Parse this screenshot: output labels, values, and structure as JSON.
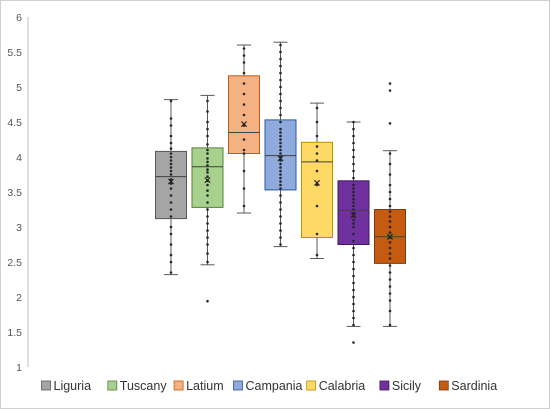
{
  "chart_data": {
    "type": "box",
    "ylim": [
      1,
      6
    ],
    "yticks": [
      "1",
      "1.5",
      "2",
      "2.5",
      "3",
      "3.5",
      "4",
      "4.5",
      "5",
      "5.5",
      "6"
    ],
    "grid": false,
    "legend_position": "bottom",
    "series": [
      {
        "name": "Liguria",
        "color": "#a5a5a5",
        "edge": "#595959",
        "min": 2.32,
        "q1": 3.12,
        "median": 3.72,
        "q3": 4.08,
        "max": 4.82,
        "mean": 3.65,
        "points": [
          2.35,
          2.5,
          2.6,
          2.75,
          2.9,
          3.0,
          3.15,
          3.25,
          3.35,
          3.45,
          3.55,
          3.62,
          3.68,
          3.75,
          3.8,
          3.85,
          3.9,
          3.95,
          4.0,
          4.05,
          4.12,
          4.2,
          4.3,
          4.45,
          4.55,
          4.8
        ]
      },
      {
        "name": "Tuscany",
        "color": "#a9d18e",
        "edge": "#548235",
        "min": 2.46,
        "q1": 3.28,
        "median": 3.86,
        "q3": 4.13,
        "max": 4.88,
        "mean": 3.67,
        "points": [
          1.94,
          2.5,
          2.62,
          2.75,
          2.85,
          2.95,
          3.05,
          3.15,
          3.25,
          3.35,
          3.45,
          3.52,
          3.6,
          3.66,
          3.72,
          3.78,
          3.82,
          3.88,
          3.93,
          3.98,
          4.05,
          4.1,
          4.18,
          4.3,
          4.4,
          4.5,
          4.65,
          4.8
        ]
      },
      {
        "name": "Latium",
        "color": "#f4b183",
        "edge": "#c55a11",
        "min": 3.2,
        "q1": 4.05,
        "median": 4.35,
        "q3": 5.16,
        "max": 5.6,
        "mean": 4.47,
        "points": [
          3.3,
          3.55,
          3.8,
          4.05,
          4.1,
          4.25,
          4.45,
          4.6,
          4.75,
          4.9,
          5.05,
          5.2,
          5.35,
          5.45,
          5.55
        ]
      },
      {
        "name": "Campania",
        "color": "#8faadc",
        "edge": "#2f5597",
        "min": 2.72,
        "q1": 3.53,
        "median": 4.02,
        "q3": 4.53,
        "max": 5.64,
        "mean": 3.98,
        "points": [
          2.75,
          2.85,
          2.95,
          3.05,
          3.15,
          3.25,
          3.35,
          3.45,
          3.55,
          3.6,
          3.65,
          3.7,
          3.75,
          3.8,
          3.85,
          3.9,
          3.95,
          4.0,
          4.05,
          4.1,
          4.15,
          4.2,
          4.25,
          4.3,
          4.35,
          4.4,
          4.5,
          4.6,
          4.7,
          4.8,
          4.9,
          5.0,
          5.1,
          5.2,
          5.3,
          5.4,
          5.5,
          5.6
        ]
      },
      {
        "name": "Calabria",
        "color": "#ffd966",
        "edge": "#bf9000",
        "min": 2.55,
        "q1": 2.85,
        "median": 3.93,
        "q3": 4.21,
        "max": 4.77,
        "mean": 3.63,
        "points": [
          2.6,
          2.9,
          3.3,
          3.6,
          3.8,
          3.95,
          4.05,
          4.15,
          4.3,
          4.5,
          4.7
        ]
      },
      {
        "name": "Sicily",
        "color": "#7030a0",
        "edge": "#3d1a5c",
        "min": 1.58,
        "q1": 2.75,
        "median": 3.24,
        "q3": 3.66,
        "max": 4.5,
        "mean": 3.17,
        "points": [
          1.35,
          1.6,
          1.7,
          1.8,
          1.9,
          2.0,
          2.1,
          2.2,
          2.3,
          2.4,
          2.5,
          2.6,
          2.7,
          2.8,
          2.9,
          3.0,
          3.05,
          3.1,
          3.15,
          3.2,
          3.25,
          3.3,
          3.35,
          3.4,
          3.45,
          3.5,
          3.55,
          3.6,
          3.7,
          3.8,
          3.9,
          4.0,
          4.1,
          4.2,
          4.3,
          4.4,
          4.5
        ]
      },
      {
        "name": "Sardinia",
        "color": "#c55a11",
        "edge": "#7f3a0b",
        "min": 1.58,
        "q1": 2.48,
        "median": 2.86,
        "q3": 3.25,
        "max": 4.09,
        "mean": 2.86,
        "points": [
          1.6,
          1.8,
          1.95,
          2.05,
          2.15,
          2.25,
          2.35,
          2.45,
          2.55,
          2.62,
          2.7,
          2.78,
          2.85,
          2.92,
          3.0,
          3.08,
          3.15,
          3.22,
          3.3,
          3.4,
          3.5,
          3.6,
          3.75,
          3.9,
          4.05,
          4.48,
          4.95,
          5.05
        ]
      }
    ]
  }
}
